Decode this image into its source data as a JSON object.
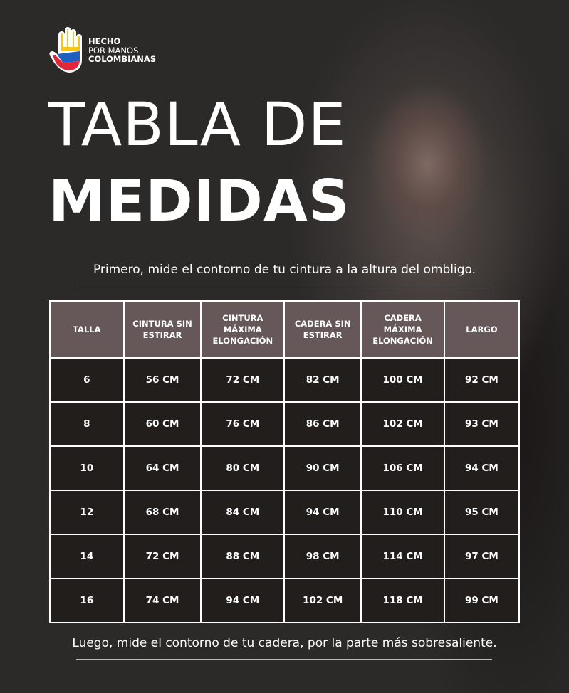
{
  "brand": {
    "line1": "HECHO",
    "line2": "POR MANOS",
    "line3": "COLOMBIANAS",
    "colors": [
      "#f5c518",
      "#1f5fbf",
      "#e0283a"
    ]
  },
  "title": {
    "line1": "TABLA DE",
    "line2": "MEDIDAS"
  },
  "note_top": "Primero, mide  el contorno de tu cintura a la altura del ombligo.",
  "note_bottom": "Luego, mide el contorno de tu cadera, por la parte más sobresaliente.",
  "table": {
    "headers": [
      "TALLA",
      "CINTURA SIN ESTIRAR",
      "CINTURA MÁXIMA ELONGACIÓN",
      "CADERA SIN ESTIRAR",
      "CADERA MÁXIMA ELONGACIÓN",
      "LARGO"
    ],
    "rows": [
      [
        "6",
        "56 CM",
        "72 CM",
        "82 CM",
        "100 CM",
        "92 CM"
      ],
      [
        "8",
        "60 CM",
        "76 CM",
        "86 CM",
        "102 CM",
        "93 CM"
      ],
      [
        "10",
        "64 CM",
        "80 CM",
        "90 CM",
        "106 CM",
        "94 CM"
      ],
      [
        "12",
        "68 CM",
        "84 CM",
        "94 CM",
        "110 CM",
        "95 CM"
      ],
      [
        "14",
        "72 CM",
        "88 CM",
        "98 CM",
        "114 CM",
        "97 CM"
      ],
      [
        "16",
        "74 CM",
        "94 CM",
        "102 CM",
        "118 CM",
        "99 CM"
      ]
    ],
    "header_color": "#665859",
    "cell_color": "#221e1c"
  }
}
